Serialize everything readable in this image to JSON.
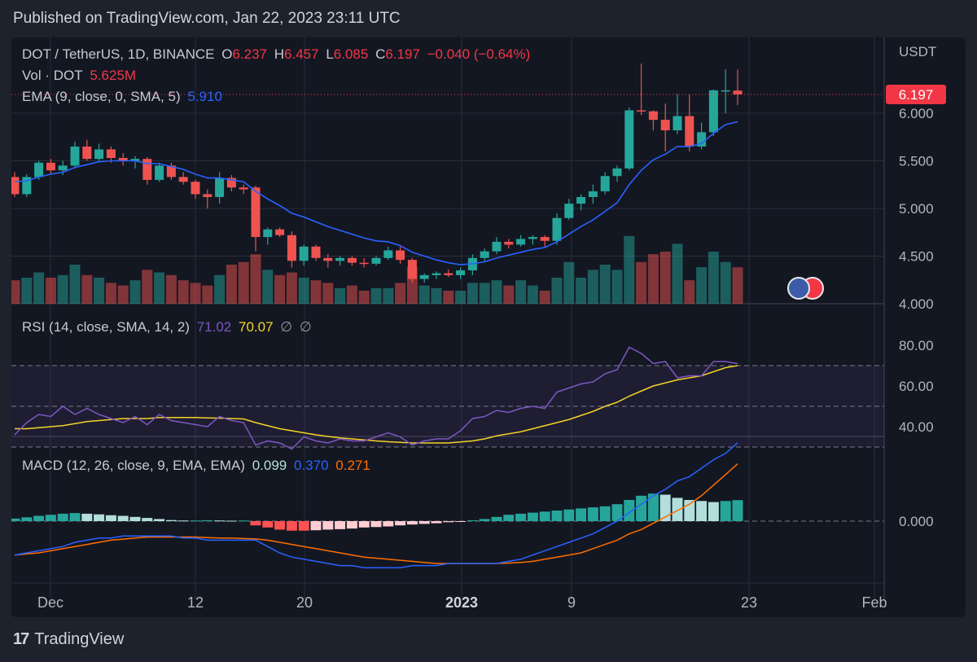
{
  "header": {
    "text": "Published on TradingView.com, Jan 22, 2023 23:11 UTC"
  },
  "footer": {
    "logo": "17",
    "brand": "TradingView"
  },
  "legend": {
    "symbol": "DOT / TetherUS, 1D, BINANCE",
    "o_label": "O",
    "o": "6.237",
    "h_label": "H",
    "h": "6.457",
    "l_label": "L",
    "l": "6.085",
    "c_label": "C",
    "c": "6.197",
    "change": "−0.040 (−0.64%)",
    "vol_label": "Vol · DOT",
    "vol": "5.625M",
    "ema_label": "EMA (9, close, 0, SMA, 5)",
    "ema": "5.910",
    "rsi_label": "RSI (14, close, SMA, 14, 2)",
    "rsi": "71.02",
    "rsi_sma": "70.07",
    "rsi_extra1": "∅",
    "rsi_extra2": "∅",
    "macd_label": "MACD (12, 26, close, 9, EMA, EMA)",
    "macd_hist": "0.099",
    "macd": "0.370",
    "macd_signal": "0.271"
  },
  "chart_data": {
    "type": "candlestick",
    "currency": "USDT",
    "last_price": 6.197,
    "colors": {
      "up": "#26a69a",
      "down": "#ef5350",
      "ema": "#2962ff",
      "rsi": "#7e57c2",
      "rsi_sma": "#f5d327",
      "macd": "#2962ff",
      "signal": "#ff6d00"
    },
    "x_ticks": [
      "Dec",
      "12",
      "20",
      "2023",
      "9",
      "23",
      "Feb"
    ],
    "price_ticks": [
      "6.000",
      "5.500",
      "5.000",
      "4.500",
      "4.000"
    ],
    "rsi_ticks": [
      "80.00",
      "60.00",
      "40.00"
    ],
    "macd_ticks": [
      "0.000"
    ],
    "price_range": [
      4.0,
      6.5
    ],
    "rsi_range": [
      25,
      85
    ],
    "ohlc": [
      [
        5.33,
        5.38,
        5.12,
        5.15
      ],
      [
        5.15,
        5.36,
        5.12,
        5.33
      ],
      [
        5.33,
        5.5,
        5.3,
        5.48
      ],
      [
        5.48,
        5.52,
        5.36,
        5.4
      ],
      [
        5.4,
        5.5,
        5.35,
        5.45
      ],
      [
        5.45,
        5.7,
        5.42,
        5.65
      ],
      [
        5.65,
        5.72,
        5.5,
        5.52
      ],
      [
        5.52,
        5.68,
        5.5,
        5.62
      ],
      [
        5.62,
        5.65,
        5.48,
        5.53
      ],
      [
        5.53,
        5.58,
        5.45,
        5.5
      ],
      [
        5.5,
        5.55,
        5.42,
        5.52
      ],
      [
        5.52,
        5.54,
        5.25,
        5.3
      ],
      [
        5.3,
        5.48,
        5.28,
        5.45
      ],
      [
        5.45,
        5.48,
        5.3,
        5.33
      ],
      [
        5.33,
        5.38,
        5.25,
        5.28
      ],
      [
        5.28,
        5.3,
        5.1,
        5.15
      ],
      [
        5.15,
        5.2,
        5.0,
        5.12
      ],
      [
        5.12,
        5.38,
        5.05,
        5.32
      ],
      [
        5.32,
        5.35,
        5.18,
        5.22
      ],
      [
        5.22,
        5.25,
        5.15,
        5.2
      ],
      [
        5.22,
        5.24,
        4.55,
        4.7
      ],
      [
        4.7,
        4.8,
        4.62,
        4.78
      ],
      [
        4.78,
        4.8,
        4.7,
        4.72
      ],
      [
        4.72,
        4.76,
        4.38,
        4.45
      ],
      [
        4.45,
        4.62,
        4.4,
        4.6
      ],
      [
        4.6,
        4.62,
        4.45,
        4.48
      ],
      [
        4.48,
        4.52,
        4.38,
        4.45
      ],
      [
        4.45,
        4.5,
        4.4,
        4.48
      ],
      [
        4.48,
        4.5,
        4.4,
        4.43
      ],
      [
        4.43,
        4.48,
        4.38,
        4.42
      ],
      [
        4.42,
        4.5,
        4.4,
        4.48
      ],
      [
        4.48,
        4.6,
        4.46,
        4.56
      ],
      [
        4.56,
        4.6,
        4.42,
        4.46
      ],
      [
        4.46,
        4.48,
        4.22,
        4.26
      ],
      [
        4.26,
        4.32,
        4.22,
        4.3
      ],
      [
        4.3,
        4.34,
        4.26,
        4.32
      ],
      [
        4.32,
        4.36,
        4.28,
        4.3
      ],
      [
        4.3,
        4.38,
        4.26,
        4.35
      ],
      [
        4.35,
        4.52,
        4.3,
        4.48
      ],
      [
        4.48,
        4.58,
        4.45,
        4.55
      ],
      [
        4.55,
        4.7,
        4.52,
        4.65
      ],
      [
        4.65,
        4.68,
        4.58,
        4.62
      ],
      [
        4.62,
        4.72,
        4.6,
        4.68
      ],
      [
        4.68,
        4.72,
        4.62,
        4.7
      ],
      [
        4.7,
        4.72,
        4.6,
        4.66
      ],
      [
        4.66,
        4.95,
        4.62,
        4.9
      ],
      [
        4.9,
        5.1,
        4.88,
        5.05
      ],
      [
        5.05,
        5.15,
        4.98,
        5.12
      ],
      [
        5.12,
        5.25,
        5.05,
        5.18
      ],
      [
        5.18,
        5.38,
        5.15,
        5.34
      ],
      [
        5.34,
        5.45,
        5.28,
        5.42
      ],
      [
        5.42,
        6.06,
        5.4,
        6.03
      ],
      [
        6.03,
        6.52,
        5.98,
        6.02
      ],
      [
        6.02,
        6.03,
        5.82,
        5.93
      ],
      [
        5.93,
        6.1,
        5.6,
        5.82
      ],
      [
        5.82,
        6.2,
        5.78,
        5.97
      ],
      [
        5.97,
        6.2,
        5.6,
        5.65
      ],
      [
        5.65,
        5.9,
        5.62,
        5.8
      ],
      [
        5.8,
        6.25,
        5.76,
        6.24
      ],
      [
        6.24,
        6.46,
        6.0,
        6.24
      ],
      [
        6.237,
        6.457,
        6.085,
        6.197
      ]
    ],
    "ema": [
      5.28,
      5.29,
      5.33,
      5.36,
      5.38,
      5.43,
      5.46,
      5.49,
      5.5,
      5.5,
      5.5,
      5.47,
      5.47,
      5.44,
      5.41,
      5.36,
      5.32,
      5.32,
      5.3,
      5.28,
      5.18,
      5.1,
      5.03,
      4.95,
      4.91,
      4.86,
      4.81,
      4.77,
      4.73,
      4.69,
      4.66,
      4.65,
      4.61,
      4.54,
      4.5,
      4.46,
      4.43,
      4.41,
      4.42,
      4.44,
      4.48,
      4.51,
      4.54,
      4.57,
      4.59,
      4.65,
      4.73,
      4.81,
      4.88,
      4.97,
      5.06,
      5.25,
      5.4,
      5.51,
      5.57,
      5.65,
      5.65,
      5.68,
      5.79,
      5.88,
      5.91
    ],
    "volume": [
      0.9,
      1.0,
      1.2,
      1.0,
      1.1,
      1.5,
      1.1,
      1.0,
      0.8,
      0.7,
      0.9,
      1.3,
      1.2,
      1.1,
      0.9,
      0.8,
      0.7,
      1.1,
      1.5,
      1.6,
      1.9,
      1.3,
      1.1,
      1.2,
      1.0,
      0.9,
      0.8,
      0.6,
      0.7,
      0.5,
      0.6,
      0.6,
      0.8,
      1.4,
      0.7,
      0.6,
      0.5,
      0.5,
      0.8,
      0.8,
      0.9,
      0.7,
      0.9,
      0.7,
      0.5,
      1.0,
      1.6,
      1.0,
      1.3,
      1.5,
      1.3,
      2.6,
      1.6,
      1.9,
      2.0,
      2.3,
      0.9,
      1.4,
      2.0,
      1.6,
      1.4
    ],
    "rsi": [
      36,
      42,
      46,
      45,
      50,
      46,
      49,
      46,
      44,
      42,
      45,
      41,
      46,
      43,
      42,
      41,
      40,
      45,
      43,
      42,
      31,
      33,
      32,
      29,
      35,
      33,
      32,
      34,
      33,
      33,
      35,
      37,
      35,
      31,
      33,
      34,
      34,
      38,
      44,
      45,
      48,
      47,
      49,
      50,
      49,
      57,
      59,
      61,
      62,
      66,
      68,
      79,
      76,
      71,
      72,
      64,
      65,
      65,
      72,
      72,
      71
    ],
    "rsi_sma": [
      39,
      39,
      39.5,
      40,
      40.5,
      41.5,
      42.5,
      43,
      43.5,
      44,
      44,
      44,
      44.5,
      44.5,
      44.5,
      44.5,
      44.3,
      44.2,
      44,
      43.8,
      42,
      40.5,
      39,
      38,
      37,
      36,
      35.2,
      34.5,
      34,
      33.5,
      33,
      32.6,
      32.3,
      32,
      32,
      32,
      32,
      32.5,
      33,
      34,
      35.5,
      36.5,
      37.5,
      39,
      40.5,
      42,
      43.5,
      45.5,
      47.5,
      50,
      52,
      55,
      57.5,
      60,
      61.5,
      63,
      64,
      65,
      67,
      69,
      70
    ],
    "macd": [
      -0.16,
      -0.15,
      -0.14,
      -0.13,
      -0.12,
      -0.1,
      -0.09,
      -0.08,
      -0.08,
      -0.07,
      -0.07,
      -0.07,
      -0.07,
      -0.07,
      -0.08,
      -0.08,
      -0.09,
      -0.09,
      -0.09,
      -0.09,
      -0.09,
      -0.12,
      -0.15,
      -0.17,
      -0.18,
      -0.19,
      -0.2,
      -0.21,
      -0.21,
      -0.22,
      -0.22,
      -0.22,
      -0.22,
      -0.21,
      -0.21,
      -0.21,
      -0.2,
      -0.2,
      -0.2,
      -0.2,
      -0.2,
      -0.19,
      -0.18,
      -0.16,
      -0.14,
      -0.12,
      -0.1,
      -0.08,
      -0.06,
      -0.03,
      0.0,
      0.04,
      0.08,
      0.12,
      0.15,
      0.19,
      0.21,
      0.25,
      0.29,
      0.32,
      0.37
    ],
    "signal": [
      -0.16,
      -0.155,
      -0.15,
      -0.14,
      -0.13,
      -0.12,
      -0.11,
      -0.1,
      -0.09,
      -0.085,
      -0.08,
      -0.075,
      -0.075,
      -0.075,
      -0.075,
      -0.075,
      -0.078,
      -0.08,
      -0.08,
      -0.082,
      -0.084,
      -0.09,
      -0.1,
      -0.11,
      -0.12,
      -0.13,
      -0.14,
      -0.15,
      -0.16,
      -0.17,
      -0.175,
      -0.18,
      -0.185,
      -0.19,
      -0.195,
      -0.2,
      -0.2,
      -0.2,
      -0.2,
      -0.2,
      -0.2,
      -0.198,
      -0.195,
      -0.19,
      -0.18,
      -0.17,
      -0.16,
      -0.15,
      -0.13,
      -0.11,
      -0.09,
      -0.06,
      -0.04,
      -0.01,
      0.02,
      0.05,
      0.08,
      0.12,
      0.17,
      0.22,
      0.271
    ],
    "hist": [
      0.012,
      0.018,
      0.025,
      0.03,
      0.035,
      0.038,
      0.035,
      0.032,
      0.028,
      0.025,
      0.02,
      0.015,
      0.01,
      0.005,
      0.003,
      0.003,
      0.004,
      0.003,
      0.002,
      0.003,
      -0.02,
      -0.03,
      -0.04,
      -0.045,
      -0.045,
      -0.043,
      -0.04,
      -0.038,
      -0.035,
      -0.03,
      -0.028,
      -0.025,
      -0.02,
      -0.016,
      -0.013,
      -0.01,
      -0.005,
      -0.002,
      0.004,
      0.01,
      0.02,
      0.03,
      0.035,
      0.04,
      0.045,
      0.05,
      0.055,
      0.06,
      0.065,
      0.07,
      0.08,
      0.1,
      0.12,
      0.13,
      0.125,
      0.11,
      0.1,
      0.095,
      0.09,
      0.095,
      0.099
    ]
  }
}
